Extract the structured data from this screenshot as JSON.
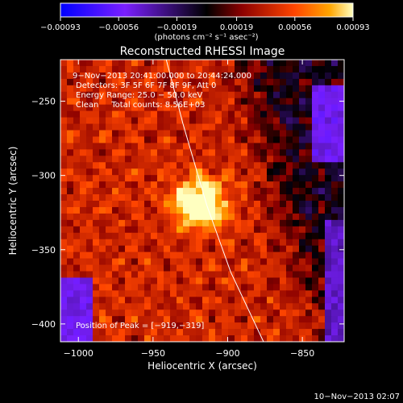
{
  "chart_data": {
    "type": "heatmap",
    "title": "Reconstructed RHESSI Image",
    "xlabel": "Heliocentric X (arcsec)",
    "ylabel": "Heliocentric Y (arcsec)",
    "xlim": [
      -1012,
      -822
    ],
    "ylim": [
      -412,
      -222
    ],
    "x_ticks": [
      -1000,
      -950,
      -900,
      -850
    ],
    "y_ticks": [
      -400,
      -350,
      -300,
      -250
    ],
    "x_tick_labels": [
      "−1000",
      "−950",
      "−900",
      "−850"
    ],
    "y_tick_labels": [
      "−400",
      "−350",
      "−300",
      "−250"
    ],
    "colorbar": {
      "ticks": [
        -0.00093,
        -0.00056,
        -0.00019,
        0.00019,
        0.00056,
        0.00093
      ],
      "tick_labels": [
        "−0.00093",
        "−0.00056",
        "−0.00019",
        "0.00019",
        "0.00056",
        "0.00093"
      ],
      "range": [
        -0.00093,
        0.00093
      ],
      "units_text": "(photons cm⁻² s⁻¹ asec⁻²)",
      "colormap": [
        "#0000ff",
        "#7a1fff",
        "#000000",
        "#8b0000",
        "#ff4500",
        "#ffa500",
        "#ffffc0"
      ]
    },
    "peak": {
      "x": -919,
      "y": -319,
      "value": 0.00093
    },
    "limb_curve": [
      {
        "x": -944,
        "y": -211
      },
      {
        "x": -930,
        "y": -265
      },
      {
        "x": -914,
        "y": -320
      },
      {
        "x": -898,
        "y": -365
      },
      {
        "x": -876,
        "y": -412
      }
    ],
    "annotations": [
      "9−Nov−2013 20:41:00.000 to 20:44:24.000",
      "Detectors: 3F 5F 6F 7F 8F 9F, Att 0",
      "Energy Range: 25.0 − 50.0 keV",
      "Clean     Total counts: 8.56E+03"
    ],
    "peak_label": "Position of Peak = [−919,−319]"
  },
  "footer_timestamp": "10−Nov−2013 02:07"
}
